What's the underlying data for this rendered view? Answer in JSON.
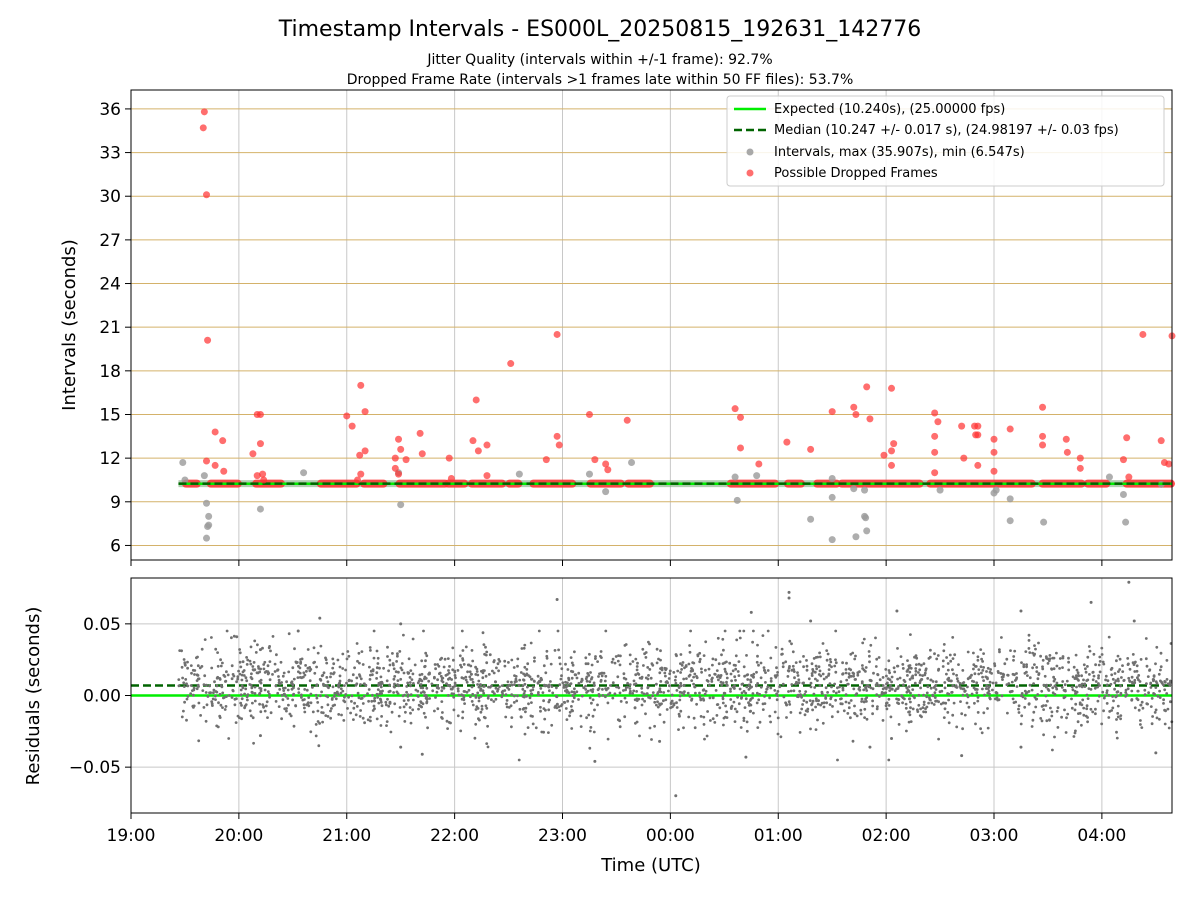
{
  "figure": {
    "title": "Timestamp Intervals - ES000L_20250815_192631_142776",
    "subtitle_1": "Jitter Quality (intervals within +/-1 frame): 92.7%",
    "subtitle_2": "Dropped Frame Rate (intervals >1 frames late within 50 FF files): 53.7%",
    "xlabel": "Time (UTC)",
    "x_ticks": [
      "19:00",
      "20:00",
      "21:00",
      "22:00",
      "23:00",
      "00:00",
      "01:00",
      "02:00",
      "03:00",
      "04:00"
    ]
  },
  "chart_data": [
    {
      "type": "scatter",
      "panel": "intervals",
      "ylabel": "Intervals (seconds)",
      "xlim_hours": [
        19.0,
        28.65
      ],
      "ylim": [
        5.0,
        37.3
      ],
      "y_ticks": [
        6,
        9,
        12,
        15,
        18,
        21,
        24,
        27,
        30,
        33,
        36
      ],
      "grid": true,
      "legend_placement": "upper-right",
      "legend": [
        "Expected (10.240s), (25.00000 fps)",
        "Median (10.247 +/- 0.017 s), (24.98197 +/- 0.03 fps)",
        "Intervals, max (35.907s), min (6.547s)",
        "Possible Dropped Frames"
      ],
      "expected_interval": 10.24,
      "median_interval": 10.247,
      "x_range_hours": [
        19.44,
        28.65
      ],
      "series_intervals_outliers": [
        [
          19.48,
          11.7
        ],
        [
          19.5,
          10.5
        ],
        [
          19.68,
          10.8
        ],
        [
          19.7,
          8.9
        ],
        [
          19.71,
          7.3
        ],
        [
          19.72,
          7.4
        ],
        [
          19.72,
          8.0
        ],
        [
          19.7,
          6.5
        ],
        [
          20.2,
          8.5
        ],
        [
          20.6,
          11.0
        ],
        [
          21.48,
          11.0
        ],
        [
          21.5,
          8.8
        ],
        [
          22.6,
          10.9
        ],
        [
          23.25,
          10.9
        ],
        [
          23.4,
          9.7
        ],
        [
          23.64,
          11.7
        ],
        [
          24.6,
          10.7
        ],
        [
          24.62,
          9.1
        ],
        [
          24.8,
          10.8
        ],
        [
          25.3,
          7.8
        ],
        [
          25.5,
          10.6
        ],
        [
          25.5,
          9.3
        ],
        [
          25.5,
          6.4
        ],
        [
          25.7,
          9.9
        ],
        [
          25.72,
          6.6
        ],
        [
          25.8,
          9.8
        ],
        [
          25.82,
          7.0
        ],
        [
          25.8,
          8.0
        ],
        [
          25.81,
          7.9
        ],
        [
          26.5,
          9.8
        ],
        [
          27.0,
          9.6
        ],
        [
          27.02,
          9.8
        ],
        [
          27.15,
          9.2
        ],
        [
          27.15,
          7.7
        ],
        [
          27.46,
          7.6
        ],
        [
          28.07,
          10.7
        ],
        [
          28.2,
          9.5
        ],
        [
          28.22,
          7.6
        ],
        [
          28.55,
          10.2
        ]
      ],
      "series_dropped_frames": [
        [
          19.68,
          35.8
        ],
        [
          19.67,
          34.7
        ],
        [
          19.7,
          30.1
        ],
        [
          19.71,
          20.1
        ],
        [
          19.7,
          11.8
        ],
        [
          19.78,
          13.8
        ],
        [
          19.78,
          11.5
        ],
        [
          19.85,
          13.2
        ],
        [
          19.86,
          11.1
        ],
        [
          20.13,
          12.3
        ],
        [
          20.17,
          15.0
        ],
        [
          20.2,
          15.0
        ],
        [
          20.2,
          13.0
        ],
        [
          20.17,
          10.8
        ],
        [
          20.22,
          10.9
        ],
        [
          20.23,
          10.5
        ],
        [
          21.0,
          14.9
        ],
        [
          21.05,
          14.2
        ],
        [
          21.13,
          17.0
        ],
        [
          21.17,
          15.2
        ],
        [
          21.12,
          12.2
        ],
        [
          21.17,
          12.5
        ],
        [
          21.13,
          10.9
        ],
        [
          21.1,
          10.5
        ],
        [
          21.48,
          13.3
        ],
        [
          21.5,
          12.6
        ],
        [
          21.45,
          12.0
        ],
        [
          21.55,
          11.9
        ],
        [
          21.45,
          11.3
        ],
        [
          21.48,
          10.9
        ],
        [
          21.68,
          13.7
        ],
        [
          21.7,
          12.3
        ],
        [
          21.95,
          12.0
        ],
        [
          21.97,
          10.6
        ],
        [
          22.17,
          13.2
        ],
        [
          22.2,
          16.0
        ],
        [
          22.22,
          12.5
        ],
        [
          22.3,
          12.9
        ],
        [
          22.3,
          10.8
        ],
        [
          22.52,
          18.5
        ],
        [
          22.85,
          11.9
        ],
        [
          22.95,
          20.5
        ],
        [
          22.95,
          13.5
        ],
        [
          22.97,
          12.9
        ],
        [
          23.25,
          15.0
        ],
        [
          23.3,
          11.9
        ],
        [
          23.4,
          11.6
        ],
        [
          23.42,
          11.2
        ],
        [
          23.6,
          14.6
        ],
        [
          24.6,
          15.4
        ],
        [
          24.65,
          14.8
        ],
        [
          24.65,
          12.7
        ],
        [
          24.82,
          11.6
        ],
        [
          25.08,
          13.1
        ],
        [
          25.3,
          12.6
        ],
        [
          25.5,
          15.2
        ],
        [
          25.7,
          15.5
        ],
        [
          25.72,
          15.0
        ],
        [
          25.82,
          16.9
        ],
        [
          25.85,
          14.7
        ],
        [
          25.98,
          12.2
        ],
        [
          26.05,
          16.8
        ],
        [
          26.07,
          13.0
        ],
        [
          26.05,
          12.5
        ],
        [
          26.05,
          11.5
        ],
        [
          26.45,
          15.1
        ],
        [
          26.48,
          14.5
        ],
        [
          26.45,
          13.5
        ],
        [
          26.45,
          12.4
        ],
        [
          26.45,
          11.0
        ],
        [
          26.7,
          14.2
        ],
        [
          26.72,
          12.0
        ],
        [
          26.82,
          14.2
        ],
        [
          26.83,
          13.6
        ],
        [
          26.85,
          14.2
        ],
        [
          26.85,
          13.6
        ],
        [
          26.85,
          11.5
        ],
        [
          27.0,
          13.3
        ],
        [
          27.0,
          12.4
        ],
        [
          27.0,
          11.1
        ],
        [
          27.15,
          14.0
        ],
        [
          27.45,
          15.5
        ],
        [
          27.45,
          13.5
        ],
        [
          27.45,
          12.9
        ],
        [
          27.67,
          13.3
        ],
        [
          27.68,
          12.4
        ],
        [
          27.8,
          12.0
        ],
        [
          27.8,
          11.3
        ],
        [
          28.23,
          13.4
        ],
        [
          28.2,
          11.9
        ],
        [
          28.25,
          10.7
        ],
        [
          28.38,
          20.5
        ],
        [
          28.55,
          13.2
        ],
        [
          28.58,
          11.7
        ],
        [
          28.62,
          11.6
        ],
        [
          28.65,
          20.4
        ]
      ],
      "baseline_clusters_hours": [
        [
          19.5,
          19.62
        ],
        [
          19.73,
          20.0
        ],
        [
          20.15,
          20.4
        ],
        [
          20.75,
          21.1
        ],
        [
          21.15,
          21.35
        ],
        [
          21.48,
          21.92
        ],
        [
          21.93,
          22.1
        ],
        [
          22.15,
          22.45
        ],
        [
          22.5,
          22.6
        ],
        [
          22.72,
          23.1
        ],
        [
          23.25,
          23.55
        ],
        [
          23.6,
          23.82
        ],
        [
          24.55,
          24.98
        ],
        [
          25.08,
          25.22
        ],
        [
          25.35,
          25.55
        ],
        [
          25.58,
          26.32
        ],
        [
          26.4,
          27.36
        ],
        [
          27.44,
          27.82
        ],
        [
          27.86,
          28.05
        ],
        [
          28.22,
          28.65
        ]
      ]
    },
    {
      "type": "scatter",
      "panel": "residuals",
      "ylabel": "Residuals (seconds)",
      "ylim": [
        -0.082,
        0.082
      ],
      "y_ticks": [
        -0.05,
        0.0,
        0.05
      ],
      "y_tick_labels": [
        "−0.05",
        "0.00",
        "0.05"
      ],
      "grid": true,
      "expected_residual": 0.0,
      "median_residual": 0.007,
      "residual_spread_sd": 0.014,
      "point_count": 2600,
      "notable_points": [
        [
          19.98,
          0.041
        ],
        [
          20.2,
          0.032
        ],
        [
          20.2,
          -0.028
        ],
        [
          20.55,
          0.045
        ],
        [
          20.75,
          0.054
        ],
        [
          21.5,
          0.05
        ],
        [
          21.5,
          -0.036
        ],
        [
          21.7,
          -0.041
        ],
        [
          22.95,
          0.067
        ],
        [
          23.3,
          -0.046
        ],
        [
          23.9,
          -0.032
        ],
        [
          24.7,
          -0.043
        ],
        [
          24.75,
          0.058
        ],
        [
          25.1,
          0.072
        ],
        [
          25.1,
          0.068
        ],
        [
          25.3,
          0.052
        ],
        [
          25.85,
          -0.036
        ],
        [
          26.05,
          -0.03
        ],
        [
          26.1,
          0.059
        ],
        [
          26.7,
          -0.042
        ],
        [
          27.25,
          0.059
        ],
        [
          27.25,
          -0.036
        ],
        [
          27.9,
          0.065
        ],
        [
          28.25,
          0.079
        ],
        [
          28.3,
          0.052
        ],
        [
          28.5,
          -0.04
        ],
        [
          24.05,
          -0.07
        ]
      ]
    }
  ],
  "colors": {
    "expected": "#00ee00",
    "median": "#006400",
    "interval_point": "#9a9a9a",
    "dropped_point": "#ff3030",
    "interval_grid": "#d4b26a",
    "grid": "#c8c8c8",
    "residual_point": "#707070"
  }
}
